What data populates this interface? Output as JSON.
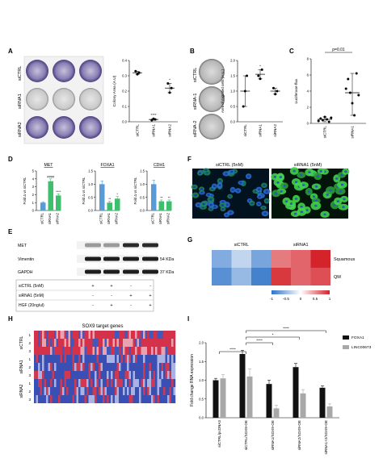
{
  "panels": {
    "A": {
      "letter": "A",
      "row_labels": [
        "siCTRL",
        "siRNA1",
        "siRNA2"
      ],
      "chart": {
        "ylabel": "Colony Area (A.U)",
        "yticks": [
          "0.4",
          "0.3",
          "0.2",
          "0.1",
          "0.0"
        ],
        "categories": [
          "siCTRL",
          "siRNA1",
          "siRNA2"
        ],
        "sig": [
          "",
          "****",
          "*"
        ]
      }
    },
    "B": {
      "letter": "B",
      "row_labels": [
        "siCTRL",
        "siRNA-1",
        "siRNA-2"
      ],
      "chart": {
        "ylabel": "Area of migrated cells (A.U.)",
        "yticks": [
          "2.0",
          "1.5",
          "1.0",
          "0.5",
          "0.0"
        ],
        "categories": [
          "siCTRL",
          "siRNA1",
          "siRNA2"
        ],
        "sig": [
          "",
          "*",
          ""
        ]
      }
    },
    "C": {
      "letter": "C",
      "ylabel": "Luciferase flux",
      "yticks": [
        "8",
        "6",
        "4",
        "2",
        "0"
      ],
      "categories": [
        "siCTRL",
        "siRNA1"
      ],
      "pvalue": "p=0.01"
    },
    "D": {
      "letter": "D",
      "subcharts": [
        {
          "title": "MET",
          "ylabel": "Fold Δ vs siCTRL",
          "yticks": [
            "5",
            "4",
            "3",
            "2",
            "1",
            "0"
          ],
          "categories": [
            "siCTRL",
            "siRNA1",
            "siRNA2"
          ],
          "sig": [
            "",
            "####",
            "****"
          ]
        },
        {
          "title": "FOXA1",
          "ylabel": "Fold Δ vs siCTRL",
          "yticks": [
            "1.5",
            "1.0",
            "0.5",
            "0.0"
          ],
          "categories": [
            "siCTRL",
            "siRNA1",
            "siRNA2"
          ],
          "sig": [
            "",
            "**",
            "*"
          ]
        },
        {
          "title": "CDH1",
          "ylabel": "Fold Δ vs siCTRL",
          "yticks": [
            "1.5",
            "1.0",
            "0.5",
            "0.0"
          ],
          "categories": [
            "siCTRL",
            "siRNA1",
            "siRNA2"
          ],
          "sig": [
            "",
            "**",
            "**"
          ]
        }
      ]
    },
    "E": {
      "letter": "E",
      "bands": [
        {
          "label": "MET",
          "size": ""
        },
        {
          "label": "Vimentin",
          "size": "54 KDa"
        },
        {
          "label": "GAPDH",
          "size": "37 KDa"
        }
      ],
      "conditions": [
        {
          "label": "siCTRL (5nM)",
          "values": [
            "+",
            "+",
            "-",
            "-"
          ]
        },
        {
          "label": "siRNA1 (5nM)",
          "values": [
            "-",
            "-",
            "+",
            "+"
          ]
        },
        {
          "label": "HGF (20ng/ul)",
          "values": [
            "-",
            "+",
            "-",
            "+"
          ]
        }
      ]
    },
    "F": {
      "letter": "F",
      "images": [
        {
          "label": "siCTRL (5nM)"
        },
        {
          "label": "siRNA1 (5nM)"
        }
      ]
    },
    "G": {
      "letter": "G",
      "col_groups": [
        "siCTRL",
        "siRNA1"
      ],
      "rows": [
        "Squamous",
        "QM"
      ],
      "matrix": [
        [
          -0.6,
          -0.3,
          -0.65,
          0.6,
          0.7,
          1.0
        ],
        [
          -0.8,
          -0.5,
          -0.9,
          0.9,
          0.7,
          0.8
        ]
      ],
      "colorbar_ticks": [
        "-1",
        "-0.5",
        "0",
        "0.5",
        "1"
      ]
    },
    "H": {
      "letter": "H",
      "title": "SOX9 target genes",
      "row_groups": [
        {
          "label": "siCTRL",
          "reps": [
            "1",
            "2",
            "3"
          ]
        },
        {
          "label": "siRNA1",
          "reps": [
            "1",
            "2",
            "3"
          ]
        },
        {
          "label": "siRNA2",
          "reps": [
            "1",
            "2",
            "3"
          ]
        }
      ]
    },
    "I": {
      "letter": "I",
      "ylabel": "Fold change RNA expression",
      "yticks": [
        "2.0",
        "1.5",
        "1.0",
        "0.5",
        "0.0"
      ],
      "categories": [
        "siCTRL/pcDNA3",
        "siCTRL/SOX9-OE",
        "siRNA1/SOX9-OE",
        "siRNA2/SOX9-OE",
        "siRNA1+2/SOX9-OE"
      ],
      "legend": [
        "FOXA1",
        "LINC00673"
      ],
      "sig_labels": [
        "****",
        "****",
        "*",
        "****"
      ]
    }
  },
  "chart_data": [
    {
      "panel": "A",
      "type": "scatter",
      "ylabel": "Colony Area (A.U)",
      "ylim": [
        0,
        0.4
      ],
      "categories": [
        "siCTRL",
        "siRNA1",
        "siRNA2"
      ],
      "points": [
        [
          0.33,
          0.31,
          0.32
        ],
        [
          0.01,
          0.02,
          0.015
        ],
        [
          0.25,
          0.19,
          0.22
        ]
      ],
      "means": [
        0.32,
        0.015,
        0.22
      ]
    },
    {
      "panel": "B",
      "type": "scatter",
      "ylabel": "Area of migrated cells (A.U.)",
      "ylim": [
        0,
        2.0
      ],
      "categories": [
        "siCTRL",
        "siRNA1",
        "siRNA2"
      ],
      "points": [
        [
          0.5,
          1.0,
          1.5
        ],
        [
          1.5,
          1.4,
          1.7
        ],
        [
          1.1,
          0.9,
          1.0
        ]
      ],
      "means": [
        1.0,
        1.55,
        1.0
      ]
    },
    {
      "panel": "C",
      "type": "scatter",
      "ylabel": "Luciferase flux",
      "ylim": [
        0,
        8
      ],
      "categories": [
        "siCTRL",
        "siRNA1"
      ],
      "points": [
        [
          0.3,
          0.6,
          0.4,
          0.8,
          0.5,
          0.2,
          0.7
        ],
        [
          4.3,
          5.5,
          3.8,
          2.5,
          1.0,
          6.2,
          3.5
        ]
      ],
      "means": [
        0.5,
        3.8
      ]
    },
    {
      "panel": "D",
      "type": "bar",
      "title": "MET",
      "ylabel": "Fold Δ vs siCTRL",
      "ylim": [
        0,
        5
      ],
      "categories": [
        "siCTRL",
        "siRNA1",
        "siRNA2"
      ],
      "values": [
        1.0,
        3.7,
        1.9
      ],
      "errors": [
        0.1,
        0.3,
        0.2
      ]
    },
    {
      "panel": "D",
      "type": "bar",
      "title": "FOXA1",
      "ylabel": "Fold Δ vs siCTRL",
      "ylim": [
        0,
        1.5
      ],
      "categories": [
        "siCTRL",
        "siRNA1",
        "siRNA2"
      ],
      "values": [
        1.0,
        0.3,
        0.45
      ],
      "errors": [
        0.12,
        0.05,
        0.08
      ]
    },
    {
      "panel": "D",
      "type": "bar",
      "title": "CDH1",
      "ylabel": "Fold Δ vs siCTRL",
      "ylim": [
        0,
        1.5
      ],
      "categories": [
        "siCTRL",
        "siRNA1",
        "siRNA2"
      ],
      "values": [
        1.0,
        0.35,
        0.35
      ],
      "errors": [
        0.15,
        0.05,
        0.05
      ]
    },
    {
      "panel": "G",
      "type": "heatmap",
      "rows": [
        "Squamous",
        "QM"
      ],
      "values": [
        [
          -0.6,
          -0.3,
          -0.65,
          0.6,
          0.7,
          1.0
        ],
        [
          -0.8,
          -0.5,
          -0.9,
          0.9,
          0.7,
          0.8
        ]
      ],
      "range": [
        -1,
        1
      ]
    },
    {
      "panel": "I",
      "type": "bar",
      "ylabel": "Fold change RNA expression",
      "ylim": [
        0,
        2.0
      ],
      "categories": [
        "siCTRL/pcDNA3",
        "siCTRL/SOX9-OE",
        "siRNA1/SOX9-OE",
        "siRNA2/SOX9-OE",
        "siRNA1+2/SOX9-OE"
      ],
      "series": [
        {
          "name": "FOXA1",
          "values": [
            1.0,
            1.7,
            0.9,
            1.35,
            0.8
          ],
          "errors": [
            0.05,
            0.1,
            0.1,
            0.1,
            0.05
          ]
        },
        {
          "name": "LINC00673",
          "values": [
            1.05,
            1.1,
            0.25,
            0.65,
            0.3
          ],
          "errors": [
            0.1,
            0.2,
            0.08,
            0.1,
            0.07
          ]
        }
      ]
    }
  ],
  "colors": {
    "bar_blue": "#5b9bd5",
    "bar_green": "#3dbf6e",
    "bar_black": "#111111",
    "bar_gray": "#a8a8a8",
    "heat_low": "#2f74c9",
    "heat_high": "#d4232a",
    "plate_stain": "#5a4c8f"
  }
}
